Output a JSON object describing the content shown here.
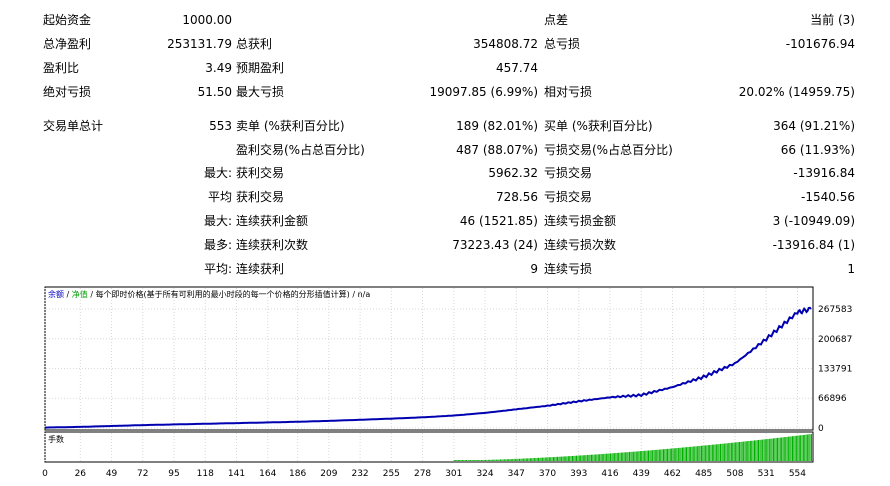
{
  "stats": {
    "r1": {
      "l1": "起始资金",
      "v1": "1000.00",
      "l3": "点差",
      "v3": "当前 (3)"
    },
    "r2": {
      "l1": "总净盈利",
      "v1": "253131.79",
      "l2": "总获利",
      "v2": "354808.72",
      "l3": "总亏损",
      "v3": "-101676.94"
    },
    "r3": {
      "l1": "盈利比",
      "v1": "3.49",
      "l2": "预期盈利",
      "v2": "457.74"
    },
    "r4": {
      "l1": "绝对亏损",
      "v1": "51.50",
      "l2": "最大亏损",
      "v2": "19097.85 (6.99%)",
      "l3": "相对亏损",
      "v3": "20.02% (14959.75)"
    },
    "r5": {
      "l1": "交易单总计",
      "v1": "553",
      "l2": "卖单 (%获利百分比)",
      "v2": "189 (82.01%)",
      "l3": "买单 (%获利百分比)",
      "v3": "364 (91.21%)"
    },
    "r6": {
      "l2": "盈利交易(%占总百分比)",
      "v2": "487 (88.07%)",
      "l3": "亏损交易(%占总百分比)",
      "v3": "66 (11.93%)"
    },
    "r7": {
      "pre": "最大:",
      "l2": "获利交易",
      "v2": "5962.32",
      "l3": "亏损交易",
      "v3": "-13916.84"
    },
    "r8": {
      "pre": "平均",
      "l2": "获利交易",
      "v2": "728.56",
      "l3": "亏损交易",
      "v3": "-1540.56"
    },
    "r9": {
      "pre": "最大:",
      "l2": "连续获利金额",
      "v2": "46 (1521.85)",
      "l3": "连续亏损金额",
      "v3": "3 (-10949.09)"
    },
    "r10": {
      "pre": "最多:",
      "l2": "连续获利次数",
      "v2": "73223.43 (24)",
      "l3": "连续亏损次数",
      "v3": "-13916.84 (1)"
    },
    "r11": {
      "pre": "平均:",
      "l2": "连续获利",
      "v2": "9",
      "l3": "连续亏损",
      "v3": "1"
    }
  },
  "chart_legend": {
    "balance": "余额",
    "sep1": " / ",
    "equity": "净值",
    "rest": " / 每个即时价格(基于所有可利用的最小时段的每一个价格的分形插值计算) / n/a"
  },
  "volume_label": "手数",
  "colors": {
    "balance": "#0000b0",
    "equity": "#00a000",
    "volume": "#00b000",
    "legend_blue": "#0000c0",
    "legend_green": "#00a000"
  },
  "chart_data": [
    {
      "type": "line",
      "series": [
        {
          "name": "余额",
          "values_note": "balance curve"
        }
      ],
      "x": [
        0,
        26,
        49,
        72,
        95,
        118,
        141,
        164,
        186,
        209,
        232,
        255,
        278,
        301,
        324,
        347,
        370,
        393,
        416,
        439,
        462,
        485,
        508,
        531,
        554,
        564
      ],
      "y": [
        1000,
        2500,
        4500,
        6500,
        8000,
        9500,
        11000,
        12500,
        14000,
        16000,
        18500,
        21000,
        24000,
        28000,
        34000,
        42000,
        50000,
        60000,
        69000,
        74000,
        92000,
        115000,
        145000,
        200000,
        260000,
        267583
      ],
      "xlim": [
        0,
        564
      ],
      "ylim": [
        0,
        267583
      ],
      "yticks": [
        "267583",
        "200687",
        "133791",
        "66896",
        "0"
      ],
      "xticks": [
        "0",
        "26",
        "49",
        "72",
        "95",
        "118",
        "141",
        "164",
        "186",
        "209",
        "232",
        "255",
        "278",
        "301",
        "324",
        "347",
        "370",
        "393",
        "416",
        "439",
        "462",
        "485",
        "508",
        "531",
        "554"
      ],
      "grid": true
    },
    {
      "type": "bar",
      "series": [
        {
          "name": "手数"
        }
      ],
      "description_values": "lot size per trade, rising from ~0 at trade 301 to full height at 564",
      "x_start": 301,
      "x_end": 564,
      "values_start": 0.02,
      "values_end": 1.0
    }
  ]
}
